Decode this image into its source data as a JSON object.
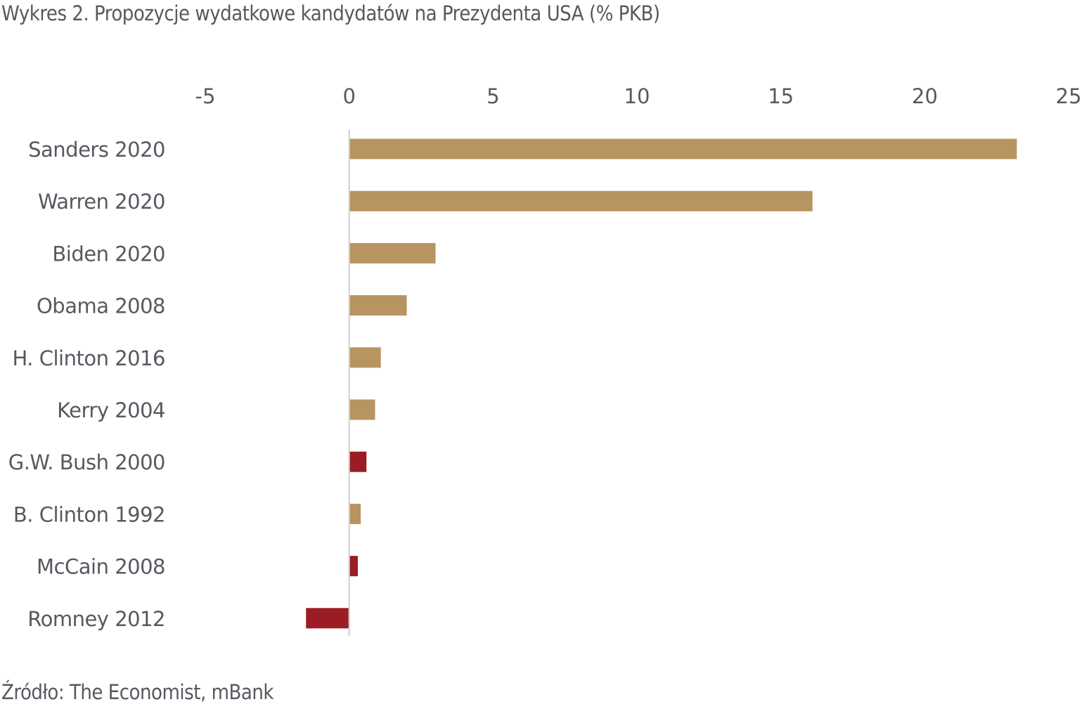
{
  "chart_data": {
    "type": "bar",
    "orientation": "horizontal",
    "title": "Wykres 2. Propozycje wydatkowe kandydatów na Prezydenta USA (% PKB)",
    "source": "Źródło: The Economist, mBank",
    "categories": [
      "Sanders 2020",
      "Warren 2020",
      "Biden 2020",
      "Obama 2008",
      "H. Clinton 2016",
      "Kerry 2004",
      "G.W. Bush 2000",
      "B. Clinton 1992",
      "McCain 2008",
      "Romney 2012"
    ],
    "values": [
      23.2,
      16.1,
      3.0,
      2.0,
      1.1,
      0.9,
      0.6,
      0.4,
      0.3,
      -1.5
    ],
    "party": [
      "D",
      "D",
      "D",
      "D",
      "D",
      "D",
      "R",
      "D",
      "R",
      "R"
    ],
    "colors": {
      "D": "#b89461",
      "R": "#9b1c22",
      "axis": "#d0d0d0"
    },
    "xlim": [
      -5,
      25
    ],
    "xticks": [
      "-5",
      "0",
      "5",
      "10",
      "15",
      "20",
      "25"
    ],
    "xtick_values": [
      -5,
      0,
      5,
      10,
      15,
      20,
      25
    ],
    "xaxis_position": "top",
    "grid": false,
    "xlabel": "",
    "ylabel": ""
  }
}
